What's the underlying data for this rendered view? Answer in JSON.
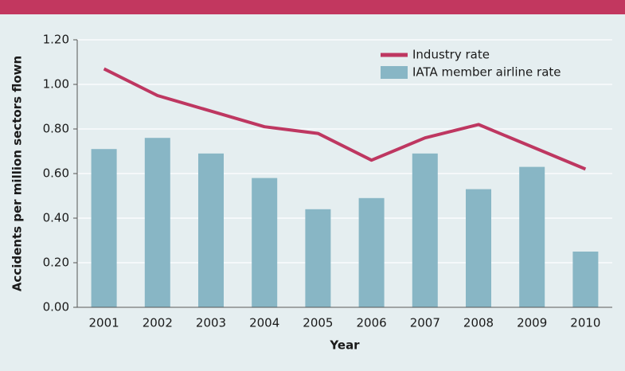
{
  "chart_data": {
    "type": "bar",
    "xlabel": "Year",
    "ylabel": "Accidents per million sectors flown",
    "categories": [
      "2001",
      "2002",
      "2003",
      "2004",
      "2005",
      "2006",
      "2007",
      "2008",
      "2009",
      "2010"
    ],
    "series": [
      {
        "name": "Industry rate",
        "type": "line",
        "color": "#be3761",
        "values": [
          1.07,
          0.95,
          0.88,
          0.81,
          0.78,
          0.66,
          0.76,
          0.82,
          0.72,
          0.62
        ]
      },
      {
        "name": "IATA member airline rate",
        "type": "bar",
        "color": "#88b6c5",
        "values": [
          0.71,
          0.76,
          0.69,
          0.58,
          0.44,
          0.49,
          0.69,
          0.53,
          0.63,
          0.25
        ]
      }
    ],
    "ylim": [
      0,
      1.2
    ],
    "yticks": [
      {
        "value": 0,
        "label": "0.00"
      },
      {
        "value": 0.2,
        "label": "0.20"
      },
      {
        "value": 0.4,
        "label": "0.40"
      },
      {
        "value": 0.6,
        "label": "0.60"
      },
      {
        "value": 0.8,
        "label": "0.80"
      },
      {
        "value": 1.0,
        "label": "1.00"
      },
      {
        "value": 1.2,
        "label": "1.20"
      }
    ],
    "grid": true,
    "legend": "top-right"
  }
}
